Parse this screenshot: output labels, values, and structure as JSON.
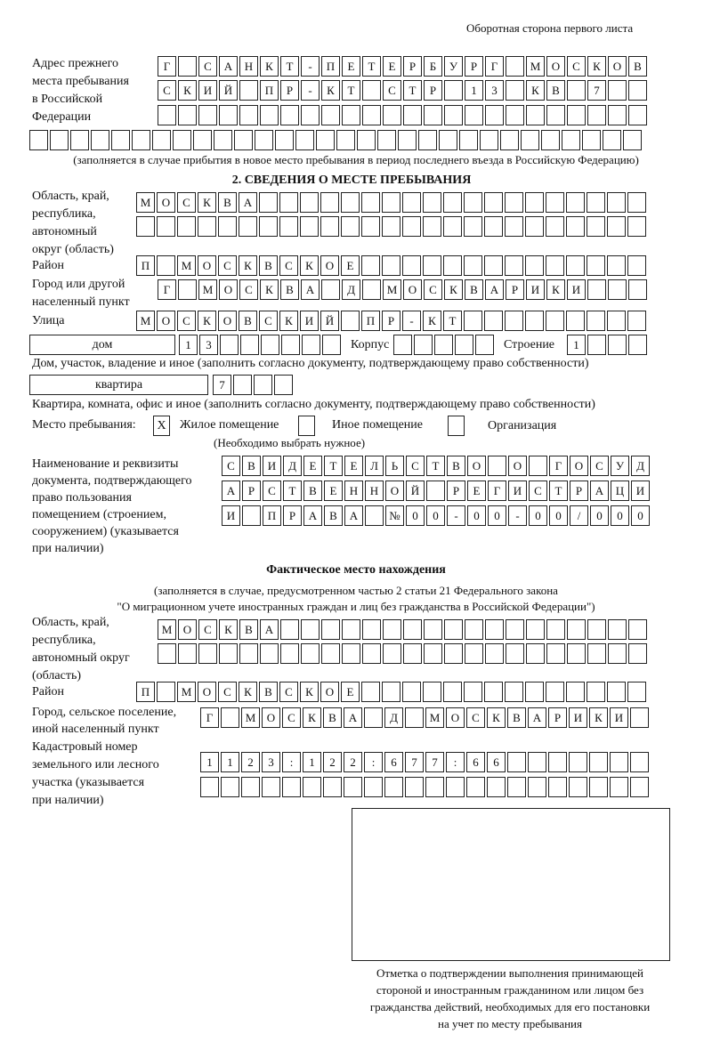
{
  "header": {
    "side_note": "Оборотная сторона первого листа"
  },
  "prev_address": {
    "label": [
      "Адрес прежнего",
      "места пребывания",
      "в Российской",
      "Федерации"
    ],
    "rows": [
      [
        "Г",
        "",
        "С",
        "А",
        "Н",
        "К",
        "Т",
        "-",
        "П",
        "Е",
        "Т",
        "Е",
        "Р",
        "Б",
        "У",
        "Р",
        "Г",
        "",
        "М",
        "О",
        "С",
        "К",
        "О",
        "В"
      ],
      [
        "С",
        "К",
        "И",
        "Й",
        "",
        "П",
        "Р",
        "-",
        "К",
        "Т",
        "",
        "С",
        "Т",
        "Р",
        "",
        "1",
        "3",
        "",
        "К",
        "В",
        "",
        "7",
        "",
        ""
      ],
      [
        "",
        "",
        "",
        "",
        "",
        "",
        "",
        "",
        "",
        "",
        "",
        "",
        "",
        "",
        "",
        "",
        "",
        "",
        "",
        "",
        "",
        "",
        "",
        ""
      ],
      [
        "",
        "",
        "",
        "",
        "",
        "",
        "",
        "",
        "",
        "",
        "",
        "",
        "",
        "",
        "",
        "",
        "",
        "",
        "",
        "",
        "",
        "",
        "",
        "",
        "",
        "",
        "",
        "",
        "",
        ""
      ]
    ],
    "note": "(заполняется в случае прибытия в новое место пребывания в период последнего въезда в Российскую Федерацию)"
  },
  "section2": {
    "title": "2. СВЕДЕНИЯ О МЕСТЕ ПРЕБЫВАНИЯ",
    "region_label": [
      "Область, край,",
      "республика,",
      "автономный",
      "округ (область)"
    ],
    "region_rows": [
      [
        "М",
        "О",
        "С",
        "К",
        "В",
        "А",
        "",
        "",
        "",
        "",
        "",
        "",
        "",
        "",
        "",
        "",
        "",
        "",
        "",
        "",
        "",
        "",
        "",
        "",
        ""
      ],
      [
        "",
        "",
        "",
        "",
        "",
        "",
        "",
        "",
        "",
        "",
        "",
        "",
        "",
        "",
        "",
        "",
        "",
        "",
        "",
        "",
        "",
        "",
        "",
        "",
        ""
      ]
    ],
    "district_label": "Район",
    "district_row": [
      "П",
      "",
      "М",
      "О",
      "С",
      "К",
      "В",
      "С",
      "К",
      "О",
      "Е",
      "",
      "",
      "",
      "",
      "",
      "",
      "",
      "",
      "",
      "",
      "",
      "",
      "",
      ""
    ],
    "city_label": [
      "Город или другой",
      "населенный пункт"
    ],
    "city_row": [
      "Г",
      "",
      "М",
      "О",
      "С",
      "К",
      "В",
      "А",
      "",
      "Д",
      "",
      "М",
      "О",
      "С",
      "К",
      "В",
      "А",
      "Р",
      "И",
      "К",
      "И",
      "",
      "",
      ""
    ],
    "street_label": "Улица",
    "street_row": [
      "М",
      "О",
      "С",
      "К",
      "О",
      "В",
      "С",
      "К",
      "И",
      "Й",
      "",
      "П",
      "Р",
      "-",
      "К",
      "Т",
      "",
      "",
      "",
      "",
      "",
      "",
      "",
      "",
      ""
    ],
    "house_type": "дом",
    "house_row": [
      "1",
      "3",
      "",
      "",
      "",
      "",
      "",
      ""
    ],
    "korpus_label": "Корпус",
    "korpus_row": [
      "",
      "",
      "",
      "",
      ""
    ],
    "building_label": "Строение",
    "building_row": [
      "1",
      "",
      "",
      ""
    ],
    "house_note": "Дом, участок, владение и иное (заполнить согласно документу, подтверждающему право собственности)",
    "flat_type": "квартира",
    "flat_row": [
      "7",
      "",
      "",
      ""
    ],
    "flat_note": "Квартира, комната, офис и иное (заполнить согласно документу, подтверждающему право собственности)",
    "stay_label": "Место пребывания:",
    "stay_options": [
      {
        "mark": "X",
        "label": "Жилое помещение"
      },
      {
        "mark": "",
        "label": "Иное помещение"
      },
      {
        "mark": "",
        "label": "Организация"
      }
    ],
    "stay_note": "(Необходимо выбрать нужное)",
    "doc_label": [
      "Наименование и реквизиты",
      "документа, подтверждающего",
      "право пользования",
      "помещением (строением,",
      "сооружением) (указывается",
      "при наличии)"
    ],
    "doc_rows": [
      [
        "С",
        "В",
        "И",
        "Д",
        "Е",
        "Т",
        "Е",
        "Л",
        "Ь",
        "С",
        "Т",
        "В",
        "О",
        "",
        "О",
        "",
        "Г",
        "О",
        "С",
        "У",
        "Д"
      ],
      [
        "А",
        "Р",
        "С",
        "Т",
        "В",
        "Е",
        "Н",
        "Н",
        "О",
        "Й",
        "",
        "Р",
        "Е",
        "Г",
        "И",
        "С",
        "Т",
        "Р",
        "А",
        "Ц",
        "И"
      ],
      [
        "И",
        "",
        "П",
        "Р",
        "А",
        "В",
        "А",
        "",
        "№",
        "0",
        "0",
        "-",
        "0",
        "0",
        "-",
        "0",
        "0",
        "/",
        "0",
        "0",
        "0"
      ]
    ]
  },
  "actual": {
    "title": "Фактическое место нахождения",
    "note": [
      "(заполняется в случае, предусмотренном частью 2 статьи 21 Федерального закона",
      "\"О миграционном учете иностранных граждан и лиц без гражданства в Российской Федерации\")"
    ],
    "region_label": [
      "Область, край,",
      "республика,",
      "автономный округ",
      "(область)"
    ],
    "region_rows": [
      [
        "М",
        "О",
        "С",
        "К",
        "В",
        "А",
        "",
        "",
        "",
        "",
        "",
        "",
        "",
        "",
        "",
        "",
        "",
        "",
        "",
        "",
        "",
        "",
        "",
        ""
      ],
      [
        "",
        "",
        "",
        "",
        "",
        "",
        "",
        "",
        "",
        "",
        "",
        "",
        "",
        "",
        "",
        "",
        "",
        "",
        "",
        "",
        "",
        "",
        "",
        ""
      ]
    ],
    "district_label": "Район",
    "district_row": [
      "П",
      "",
      "М",
      "О",
      "С",
      "К",
      "В",
      "С",
      "К",
      "О",
      "Е",
      "",
      "",
      "",
      "",
      "",
      "",
      "",
      "",
      "",
      "",
      "",
      "",
      "",
      ""
    ],
    "city_label": [
      "Город, сельское поселение,",
      "иной населенный пункт"
    ],
    "city_row": [
      "Г",
      "",
      "М",
      "О",
      "С",
      "К",
      "В",
      "А",
      "",
      "Д",
      "",
      "М",
      "О",
      "С",
      "К",
      "В",
      "А",
      "Р",
      "И",
      "К",
      "И",
      ""
    ],
    "cadastre_label": [
      "Кадастровый номер",
      "земельного или лесного",
      "участка (указывается",
      "при наличии)"
    ],
    "cadastre_rows": [
      [
        "1",
        "1",
        "2",
        "3",
        ":",
        "1",
        "2",
        "2",
        ":",
        "6",
        "7",
        "7",
        ":",
        "6",
        "6",
        "",
        "",
        "",
        "",
        "",
        "",
        ""
      ],
      [
        "",
        "",
        "",
        "",
        "",
        "",
        "",
        "",
        "",
        "",
        "",
        "",
        "",
        "",
        "",
        "",
        "",
        "",
        "",
        "",
        "",
        ""
      ]
    ]
  },
  "confirmation": {
    "caption": [
      "Отметка о подтверждении выполнения принимающей",
      "стороной и иностранным гражданином или лицом без",
      "гражданства действий, необходимых для его постановки",
      "на учет по месту пребывания"
    ]
  }
}
